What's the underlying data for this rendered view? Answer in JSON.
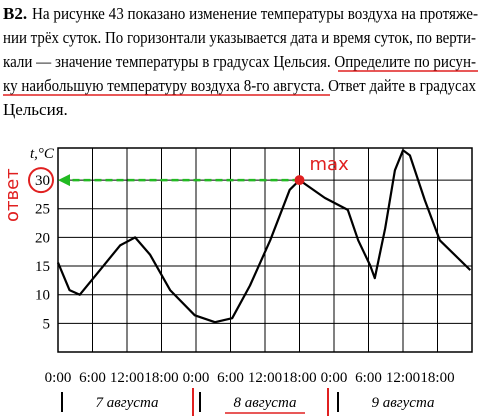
{
  "problem": {
    "number": "В2.",
    "lines": [
      "На рисунке 43 показано изменение температуры воздуха на протяже-",
      "нии трёх суток. По горизонтали указывается дата и время суток, по верти-",
      "кали — значение температуры в градусах Цельсия. Определите по рисун-",
      "ку наибольшую температуру воздуха 8-го августа. Ответ дайте в градусах",
      "Цельсия."
    ]
  },
  "chart_data": {
    "type": "line",
    "y_label": "t,°C",
    "x": [
      0,
      2,
      3.8,
      7.3,
      10.8,
      13.4,
      16,
      19.5,
      23.8,
      27.3,
      30.3,
      33.4,
      36.9,
      40.3,
      42,
      46.4,
      50.4,
      52.2,
      54.3,
      55.1,
      56.9,
      58.6,
      60,
      61.2,
      63.8,
      66.4,
      71.7
    ],
    "series": [
      {
        "color": "#000000",
        "values": [
          15.6,
          10.8,
          10,
          14.3,
          18.6,
          20,
          17,
          10.8,
          6.4,
          5.2,
          5.9,
          11.6,
          19.5,
          28.3,
          30,
          26.9,
          24.8,
          19.5,
          15.1,
          12.9,
          21.6,
          31.7,
          35.2,
          34.3,
          26.5,
          19.5,
          14.3
        ]
      }
    ],
    "xlim": [
      0,
      72
    ],
    "ylim": [
      0,
      35.6
    ],
    "xticks": [
      {
        "value": 0,
        "label": "0:00"
      },
      {
        "value": 6,
        "label": "6:00"
      },
      {
        "value": 12,
        "label": "12:00"
      },
      {
        "value": 18,
        "label": "18:00"
      },
      {
        "value": 24,
        "label": "0:00"
      },
      {
        "value": 30,
        "label": "6:00"
      },
      {
        "value": 36,
        "label": "12:00"
      },
      {
        "value": 42,
        "label": "18:00"
      },
      {
        "value": 48,
        "label": "0:00"
      },
      {
        "value": 54,
        "label": "6:00"
      },
      {
        "value": 60,
        "label": "12:00"
      },
      {
        "value": 66,
        "label": "18:00"
      }
    ],
    "yticks": [
      5,
      10,
      15,
      20,
      25,
      30
    ],
    "days": [
      "7 августа",
      "8 августа",
      "9 августа"
    ],
    "grid": true
  },
  "annotations": {
    "answer": "ответ",
    "max": "max"
  }
}
